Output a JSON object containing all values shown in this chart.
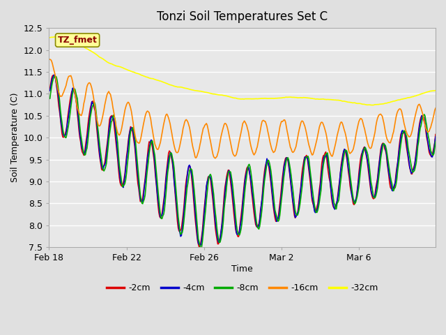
{
  "title": "Tonzi Soil Temperatures Set C",
  "xlabel": "Time",
  "ylabel": "Soil Temperature (C)",
  "ylim": [
    7.5,
    12.5
  ],
  "legend_labels": [
    "-2cm",
    "-4cm",
    "-8cm",
    "-16cm",
    "-32cm"
  ],
  "line_colors": [
    "#dd0000",
    "#0000cc",
    "#00aa00",
    "#ff8800",
    "#ffff00"
  ],
  "background_color": "#e0e0e0",
  "plot_bg_color": "#e8e8e8",
  "annotation_text": "TZ_fmet",
  "annotation_color": "#8b0000",
  "annotation_bg": "#ffff99",
  "tick_dates": [
    "Feb 18",
    "Feb 22",
    "Feb 26",
    "Mar 2",
    "Mar 6"
  ],
  "tick_positions": [
    0,
    96,
    192,
    288,
    384
  ],
  "total_points": 480,
  "grid_color": "#ffffff",
  "linewidth": 1.2
}
